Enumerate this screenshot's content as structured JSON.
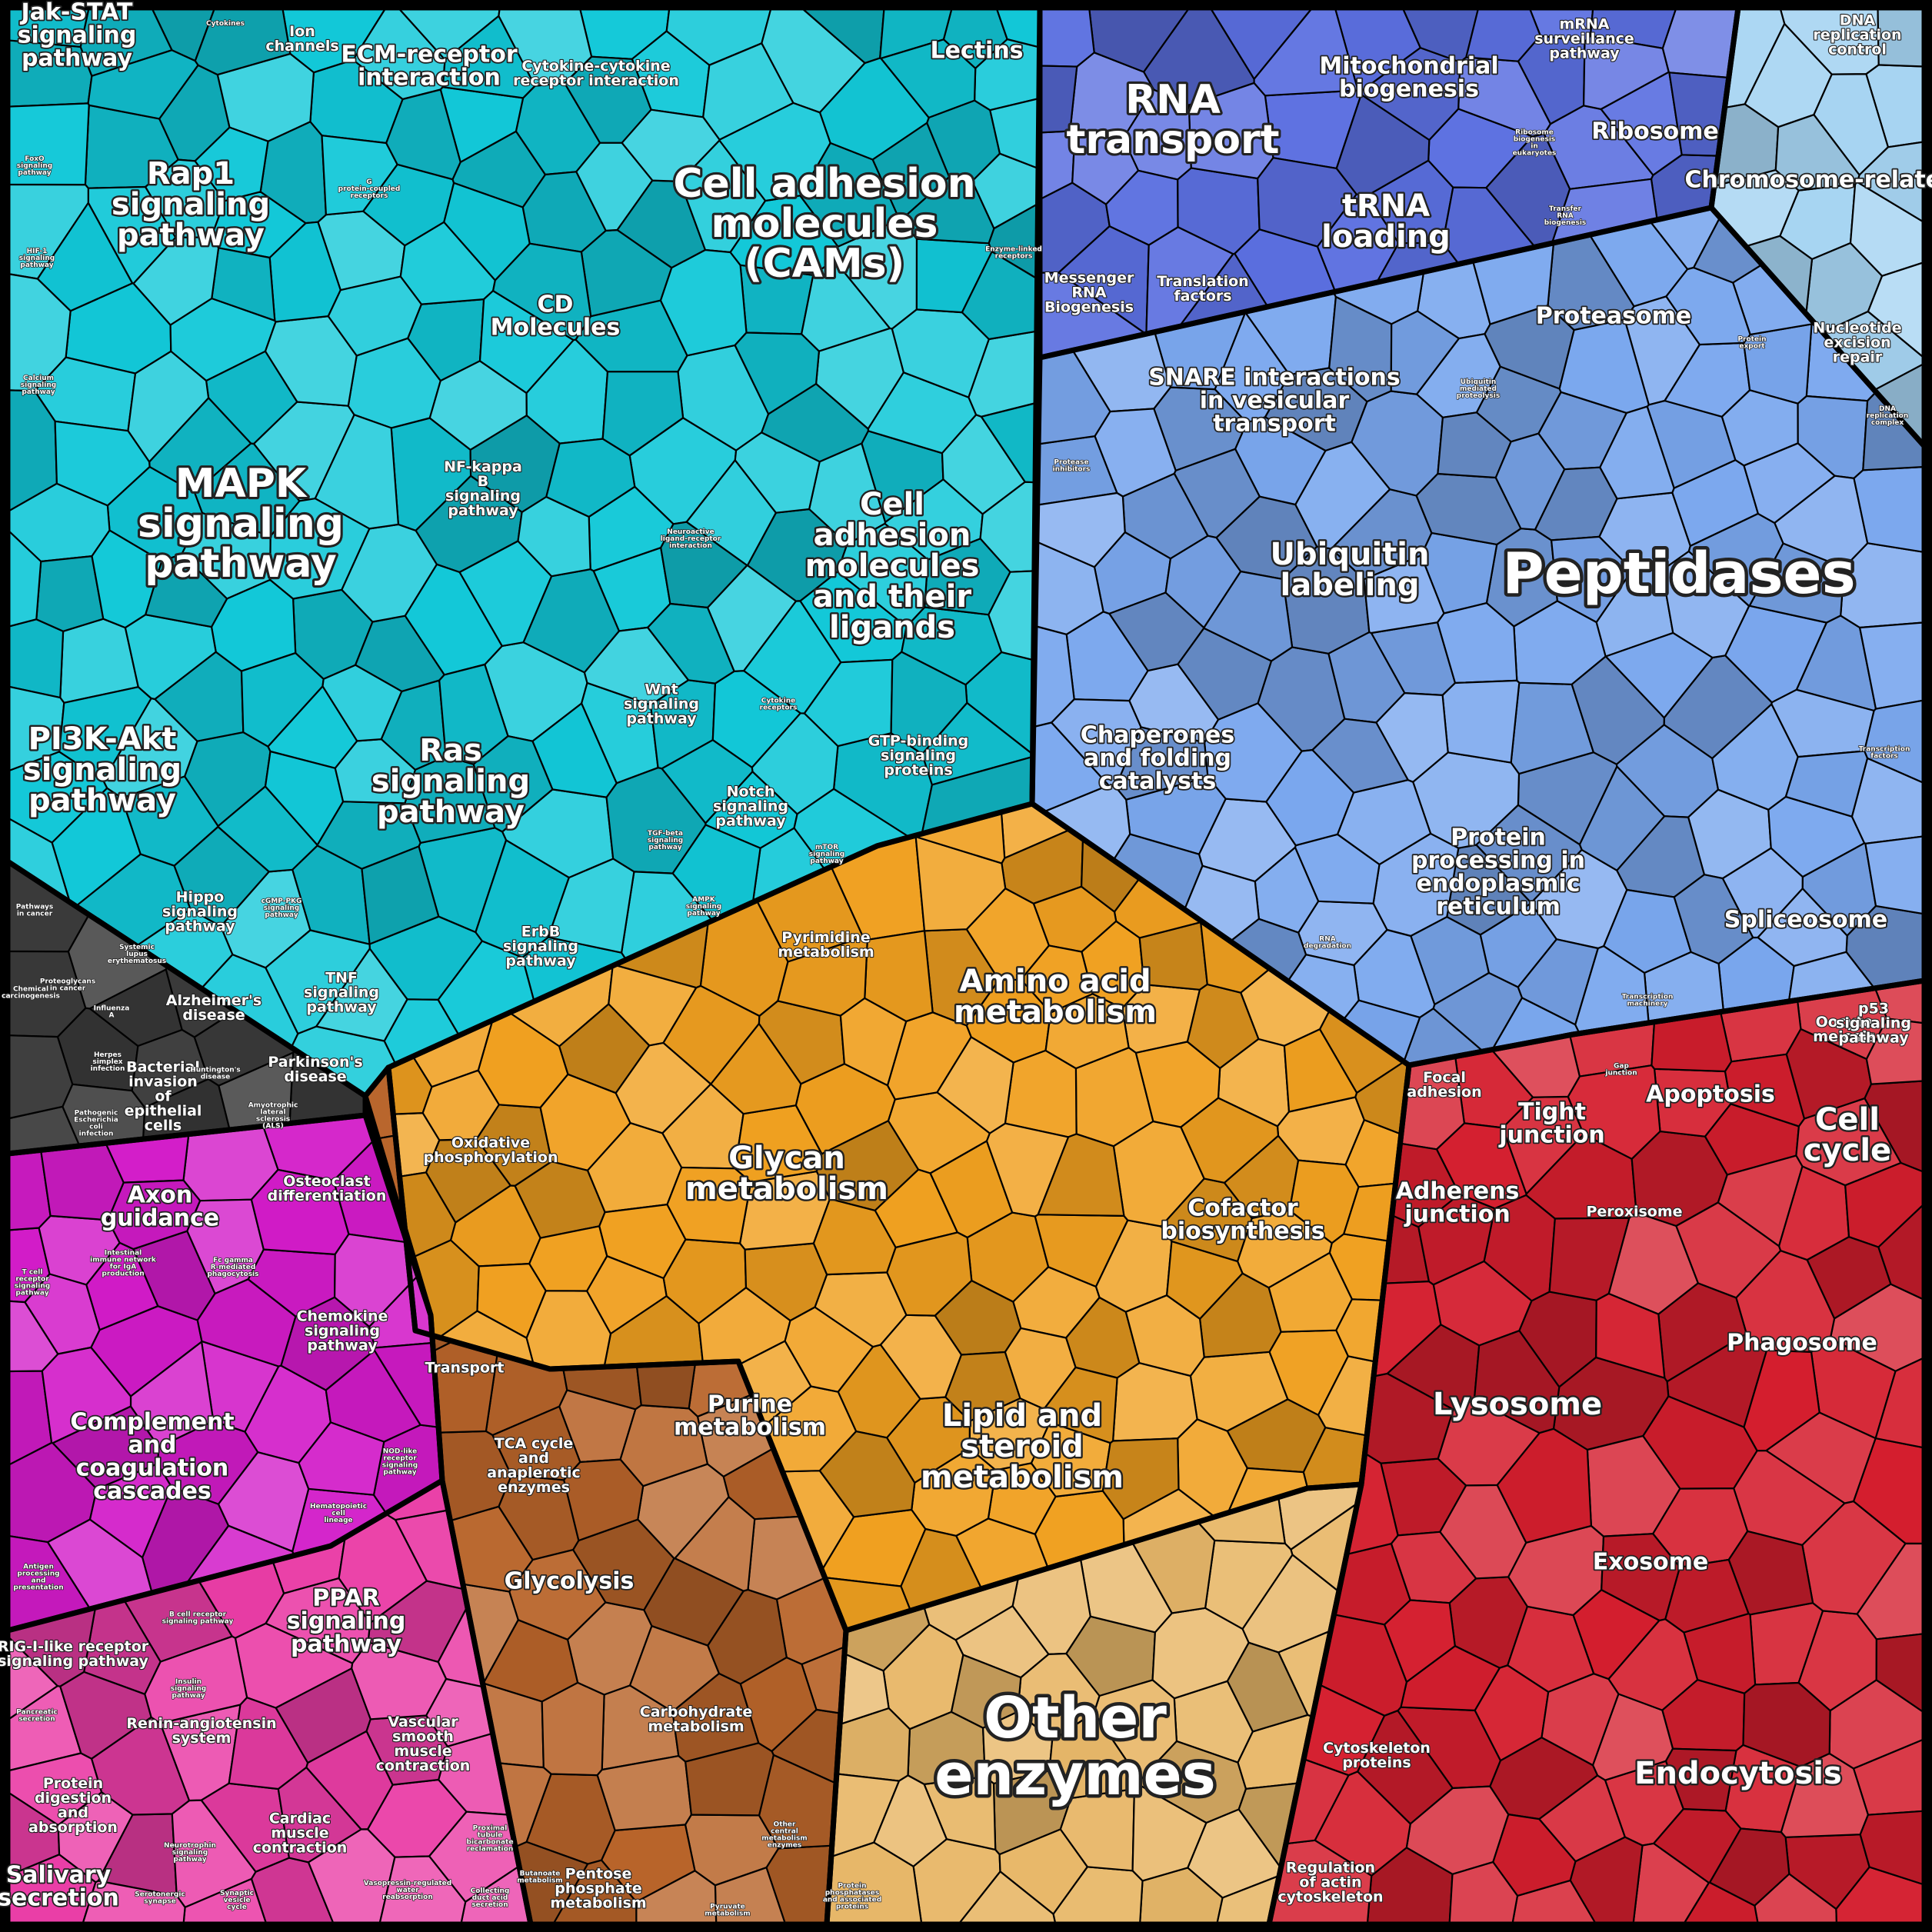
{
  "diagram": {
    "type": "voronoi-treemap",
    "regions": [
      {
        "id": "cyan",
        "color": "#12c8d8"
      },
      {
        "id": "blue",
        "color": "#5b6fe0"
      },
      {
        "id": "lightblue",
        "color": "#7aa7ee"
      },
      {
        "id": "paleblue",
        "color": "#a6d4f2"
      },
      {
        "id": "orange",
        "color": "#f0a020"
      },
      {
        "id": "brown",
        "color": "#b8642a"
      },
      {
        "id": "tan",
        "color": "#e8b86a"
      },
      {
        "id": "red",
        "color": "#d41e2e"
      },
      {
        "id": "magenta",
        "color": "#d21bc8"
      },
      {
        "id": "pink",
        "color": "#ea3da6"
      },
      {
        "id": "dark",
        "color": "#3b3b3b"
      }
    ],
    "labels": [
      {
        "text": "Jak-STAT signaling pathway",
        "size": "m"
      },
      {
        "text": "Cytokines",
        "size": "xs"
      },
      {
        "text": "Ion channels",
        "size": "s"
      },
      {
        "text": "ECM-receptor interaction",
        "size": "m"
      },
      {
        "text": "Cytokine-cytokine receptor interaction",
        "size": "s"
      },
      {
        "text": "Lectins",
        "size": "m"
      },
      {
        "text": "FoxO signaling pathway",
        "size": "xs"
      },
      {
        "text": "Rap1 signaling pathway",
        "size": "l"
      },
      {
        "text": "G protein-coupled receptors",
        "size": "xs"
      },
      {
        "text": "Cell adhesion molecules (CAMs)",
        "size": "xl"
      },
      {
        "text": "HIF-1 signaling pathway",
        "size": "xs"
      },
      {
        "text": "Enzyme-linked receptors",
        "size": "xs"
      },
      {
        "text": "CD Molecules",
        "size": "m"
      },
      {
        "text": "Calcium signaling pathway",
        "size": "xs"
      },
      {
        "text": "NF-kappa B signaling pathway",
        "size": "s"
      },
      {
        "text": "MAPK signaling pathway",
        "size": "xl"
      },
      {
        "text": "Neuroactive ligand-receptor interaction",
        "size": "xs"
      },
      {
        "text": "Cell adhesion molecules and their ligands",
        "size": "l"
      },
      {
        "text": "Wnt signaling pathway",
        "size": "s"
      },
      {
        "text": "Cytokine receptors",
        "size": "xs"
      },
      {
        "text": "PI3K-Akt signaling pathway",
        "size": "l"
      },
      {
        "text": "GTP-binding signaling proteins",
        "size": "s"
      },
      {
        "text": "Ras signaling pathway",
        "size": "l"
      },
      {
        "text": "Notch signaling pathway",
        "size": "s"
      },
      {
        "text": "TGF-beta signaling pathway",
        "size": "xs"
      },
      {
        "text": "mTOR signaling pathway",
        "size": "xs"
      },
      {
        "text": "Hippo signaling pathway",
        "size": "s"
      },
      {
        "text": "cGMP-PKG signaling pathway",
        "size": "xs"
      },
      {
        "text": "AMPK signaling pathway",
        "size": "xs"
      },
      {
        "text": "ErbB signaling pathway",
        "size": "s"
      },
      {
        "text": "TNF signaling pathway",
        "size": "s"
      },
      {
        "text": "Pathways in cancer",
        "size": "xs"
      },
      {
        "text": "Systemic lupus erythematosus",
        "size": "xs"
      },
      {
        "text": "Proteoglycans in cancer",
        "size": "xs"
      },
      {
        "text": "Chemical carcinogenesis",
        "size": "xs"
      },
      {
        "text": "Influenza A",
        "size": "xs"
      },
      {
        "text": "Alzheimer's disease",
        "size": "s"
      },
      {
        "text": "Herpes simplex infection",
        "size": "xs"
      },
      {
        "text": "Bacterial invasion of epithelial cells",
        "size": "s"
      },
      {
        "text": "Huntington's disease",
        "size": "xs"
      },
      {
        "text": "Parkinson's disease",
        "size": "s"
      },
      {
        "text": "Pathogenic Escherichia coli infection",
        "size": "xs"
      },
      {
        "text": "Amyotrophic lateral sclerosis (ALS)",
        "size": "xs"
      },
      {
        "text": "RNA transport",
        "size": "xl"
      },
      {
        "text": "Mitochondrial biogenesis",
        "size": "m"
      },
      {
        "text": "mRNA surveillance pathway",
        "size": "s"
      },
      {
        "text": "DNA replication control",
        "size": "s"
      },
      {
        "text": "Ribosome biogenesis in eukaryotes",
        "size": "xs"
      },
      {
        "text": "Ribosome",
        "size": "m"
      },
      {
        "text": "Chromosome-related",
        "size": "m"
      },
      {
        "text": "tRNA loading",
        "size": "l"
      },
      {
        "text": "Transfer RNA biogenesis",
        "size": "xs"
      },
      {
        "text": "Messenger RNA Biogenesis",
        "size": "s"
      },
      {
        "text": "Translation factors",
        "size": "s"
      },
      {
        "text": "Proteasome",
        "size": "m"
      },
      {
        "text": "Nucleotide excision repair",
        "size": "s"
      },
      {
        "text": "SNARE interactions in vesicular transport",
        "size": "m"
      },
      {
        "text": "Ubiquitin mediated proteolysis",
        "size": "xs"
      },
      {
        "text": "Protein export",
        "size": "xs"
      },
      {
        "text": "DNA replication complex",
        "size": "xs"
      },
      {
        "text": "Protease inhibitors",
        "size": "xs"
      },
      {
        "text": "Ubiquitin labeling",
        "size": "l"
      },
      {
        "text": "Peptidases",
        "size": "xxl"
      },
      {
        "text": "Chaperones and folding catalysts",
        "size": "m"
      },
      {
        "text": "Transcription factors",
        "size": "xs"
      },
      {
        "text": "Protein processing in endoplasmic reticulum",
        "size": "m"
      },
      {
        "text": "RNA degradation",
        "size": "xs"
      },
      {
        "text": "Spliceosome",
        "size": "m"
      },
      {
        "text": "Transcription machinery",
        "size": "xs"
      },
      {
        "text": "Pyrimidine metabolism",
        "size": "s"
      },
      {
        "text": "Amino acid metabolism",
        "size": "l"
      },
      {
        "text": "Oxidative phosphorylation",
        "size": "s"
      },
      {
        "text": "Glycan metabolism",
        "size": "l"
      },
      {
        "text": "Cofactor biosynthesis",
        "size": "m"
      },
      {
        "text": "Transport",
        "size": "s"
      },
      {
        "text": "Purine metabolism",
        "size": "m"
      },
      {
        "text": "Lipid and steroid metabolism",
        "size": "l"
      },
      {
        "text": "TCA cycle and anaplerotic enzymes",
        "size": "s"
      },
      {
        "text": "Glycolysis",
        "size": "m"
      },
      {
        "text": "Carbohydrate metabolism",
        "size": "s"
      },
      {
        "text": "Other central metabolism enzymes",
        "size": "xs"
      },
      {
        "text": "Pentose phosphate metabolism",
        "size": "s"
      },
      {
        "text": "Pyruvate metabolism",
        "size": "xs"
      },
      {
        "text": "Butanoate metabolism",
        "size": "xs"
      },
      {
        "text": "Other enzymes",
        "size": "xxl"
      },
      {
        "text": "Protein phosphatases and associated proteins",
        "size": "xs"
      },
      {
        "text": "Focal adhesion",
        "size": "s"
      },
      {
        "text": "Tight junction",
        "size": "m"
      },
      {
        "text": "Gap junction",
        "size": "xs"
      },
      {
        "text": "Apoptosis",
        "size": "m"
      },
      {
        "text": "Oocyte meiosis",
        "size": "s"
      },
      {
        "text": "p53 signaling pathway",
        "size": "s"
      },
      {
        "text": "Cell cycle",
        "size": "l"
      },
      {
        "text": "Adherens junction",
        "size": "m"
      },
      {
        "text": "Peroxisome",
        "size": "s"
      },
      {
        "text": "Phagosome",
        "size": "m"
      },
      {
        "text": "Lysosome",
        "size": "l"
      },
      {
        "text": "Exosome",
        "size": "m"
      },
      {
        "text": "Cytoskeleton proteins",
        "size": "s"
      },
      {
        "text": "Endocytosis",
        "size": "l"
      },
      {
        "text": "Regulation of actin cytoskeleton",
        "size": "s"
      },
      {
        "text": "Axon guidance",
        "size": "m"
      },
      {
        "text": "Osteoclast differentiation",
        "size": "s"
      },
      {
        "text": "T cell receptor signaling pathway",
        "size": "xs"
      },
      {
        "text": "Intestinal immune network for IgA production",
        "size": "xs"
      },
      {
        "text": "Fc gamma R-mediated phagocytosis",
        "size": "xs"
      },
      {
        "text": "Chemokine signaling pathway",
        "size": "s"
      },
      {
        "text": "Complement and coagulation cascades",
        "size": "m"
      },
      {
        "text": "NOD-like receptor signaling pathway",
        "size": "xs"
      },
      {
        "text": "Hematopoietic cell lineage",
        "size": "xs"
      },
      {
        "text": "Antigen processing and presentation",
        "size": "xs"
      },
      {
        "text": "B cell receptor signaling pathway",
        "size": "xs"
      },
      {
        "text": "PPAR signaling pathway",
        "size": "m"
      },
      {
        "text": "RIG-I-like receptor signaling pathway",
        "size": "s"
      },
      {
        "text": "Insulin signaling pathway",
        "size": "xs"
      },
      {
        "text": "Pancreatic secretion",
        "size": "xs"
      },
      {
        "text": "Renin-angiotensin system",
        "size": "s"
      },
      {
        "text": "Vascular smooth muscle contraction",
        "size": "s"
      },
      {
        "text": "Protein digestion and absorption",
        "size": "s"
      },
      {
        "text": "Cardiac muscle contraction",
        "size": "s"
      },
      {
        "text": "Neurotrophin signaling pathway",
        "size": "xs"
      },
      {
        "text": "Proximal tubule bicarbonate reclamation",
        "size": "xs"
      },
      {
        "text": "Salivary secretion",
        "size": "m"
      },
      {
        "text": "Serotonergic synapse",
        "size": "xs"
      },
      {
        "text": "Synaptic vesicle cycle",
        "size": "xs"
      },
      {
        "text": "Vasopressin-regulated water reabsorption",
        "size": "xs"
      },
      {
        "text": "Collecting duct acid secretion",
        "size": "xs"
      }
    ]
  }
}
